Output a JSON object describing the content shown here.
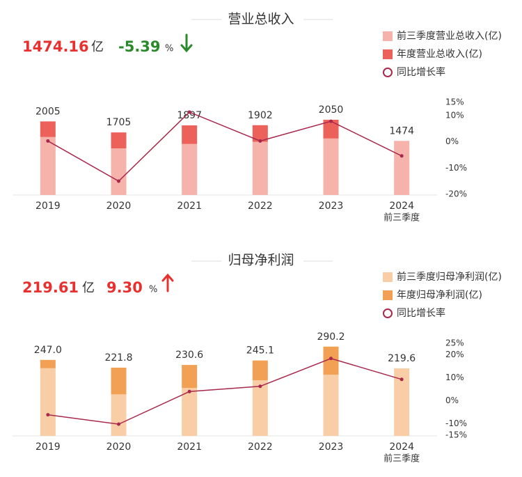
{
  "chart_data": [
    {
      "type": "bar",
      "title": "营业总收入",
      "headline": {
        "value": "1474.16",
        "unit": "亿",
        "change": "-5.39",
        "change_unit": "%",
        "change_color": "#2a8a2a"
      },
      "categories": [
        "2019",
        "2020",
        "2021",
        "2022",
        "2023",
        "2024"
      ],
      "category_sublabels": [
        null,
        null,
        null,
        null,
        null,
        "前三季度"
      ],
      "series": [
        {
          "name": "前三季度营业总收入(亿)",
          "color": "#f5b3ab",
          "values": [
            1580,
            1270,
            1390,
            1450,
            1540,
            1474
          ]
        },
        {
          "name": "年度营业总收入(亿)",
          "color": "#ec625a",
          "values": [
            425,
            435,
            507,
            452,
            510,
            null
          ]
        },
        {
          "name": "同比增长率",
          "color": "#a8284c",
          "type": "line",
          "axis": "y2",
          "values": [
            0.3,
            -15.0,
            11.3,
            0.3,
            7.8,
            -5.39
          ]
        }
      ],
      "totals": [
        2005,
        1705,
        1897,
        1902,
        2050,
        1474
      ],
      "ylim": [
        0,
        2600
      ],
      "y2lim": [
        -20,
        15
      ],
      "y2ticks": [
        {
          "value": 15,
          "label": "15%"
        },
        {
          "value": 10,
          "label": "10%"
        },
        {
          "value": 0,
          "label": "0%"
        },
        {
          "value": -10,
          "label": "-10%"
        },
        {
          "value": -20,
          "label": "-20%"
        }
      ],
      "grid": false
    },
    {
      "type": "bar",
      "title": "归母净利润",
      "headline": {
        "value": "219.61",
        "unit": "亿",
        "change": "9.30",
        "change_unit": "%",
        "change_color": "#e8312f"
      },
      "categories": [
        "2019",
        "2020",
        "2021",
        "2022",
        "2023",
        "2024"
      ],
      "category_sublabels": [
        null,
        null,
        null,
        null,
        null,
        "前三季度"
      ],
      "series": [
        {
          "name": "前三季度归母净利润(亿)",
          "color": "#f9cea6",
          "values": [
            220,
            135,
            156,
            181,
            199,
            219.6
          ]
        },
        {
          "name": "年度归母净利润(亿)",
          "color": "#f2a053",
          "values": [
            27,
            86.8,
            74.6,
            64.1,
            91.2,
            null
          ]
        },
        {
          "name": "同比增长率",
          "color": "#a8284c",
          "type": "line",
          "axis": "y2",
          "values": [
            -6.1,
            -10.2,
            4.0,
            6.3,
            18.4,
            9.3
          ]
        }
      ],
      "totals": [
        247.0,
        221.8,
        230.6,
        245.1,
        290.2,
        219.6
      ],
      "value_labels": [
        "247.0",
        "221.8",
        "230.6",
        "245.1",
        "290.2",
        "219.6"
      ],
      "ylim": [
        0,
        310
      ],
      "y2lim": [
        -15,
        25
      ],
      "y2ticks": [
        {
          "value": 25,
          "label": "25%"
        },
        {
          "value": 20,
          "label": "20%"
        },
        {
          "value": 10,
          "label": "10%"
        },
        {
          "value": 0,
          "label": "0%"
        },
        {
          "value": -10,
          "label": "-10%"
        },
        {
          "value": -15,
          "label": "-15%"
        }
      ],
      "grid": false
    }
  ]
}
